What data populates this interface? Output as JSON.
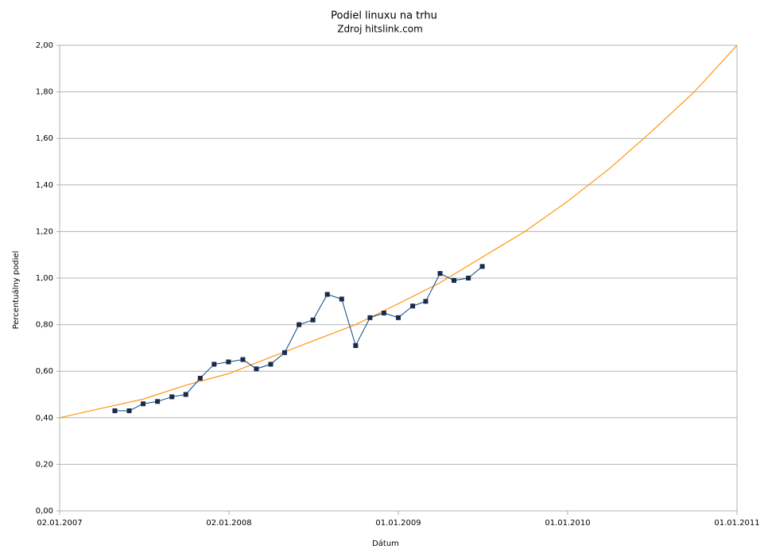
{
  "chart_data": {
    "type": "line",
    "title": "Podiel linuxu na trhu",
    "subtitle": "Zdroj hitslink.com",
    "x_label": "Dátum",
    "y_label": "Percentuálny podiel",
    "x": [
      "2007-05-01",
      "2007-06-01",
      "2007-07-01",
      "2007-08-01",
      "2007-09-01",
      "2007-10-01",
      "2007-11-01",
      "2007-12-01",
      "2008-01-01",
      "2008-02-01",
      "2008-03-01",
      "2008-04-01",
      "2008-05-01",
      "2008-06-01",
      "2008-07-01",
      "2008-08-01",
      "2008-09-01",
      "2008-10-01",
      "2008-11-01",
      "2008-12-01",
      "2009-01-01",
      "2009-02-01",
      "2009-03-01",
      "2009-04-01",
      "2009-05-01",
      "2009-06-01",
      "2009-07-01"
    ],
    "series": [
      {
        "color": "#004586",
        "marker_color": "#1c2a4a",
        "values": [
          0.43,
          0.43,
          0.46,
          0.47,
          0.49,
          0.5,
          0.57,
          0.63,
          0.64,
          0.65,
          0.61,
          0.63,
          0.68,
          0.8,
          0.82,
          0.93,
          0.91,
          0.71,
          0.83,
          0.85,
          0.83,
          0.88,
          0.9,
          1.02,
          0.99,
          1.0,
          1.05
        ]
      }
    ],
    "trendline": {
      "color": "#ff950e",
      "x": [
        "2007-01-02",
        "2007-04-01",
        "2007-07-01",
        "2007-10-01",
        "2008-01-02",
        "2008-04-01",
        "2008-07-01",
        "2008-10-01",
        "2009-01-01",
        "2009-04-01",
        "2009-07-01",
        "2009-10-01",
        "2010-01-01",
        "2010-04-01",
        "2010-07-01",
        "2010-10-01",
        "2011-01-01"
      ],
      "values": [
        0.4,
        0.44,
        0.48,
        0.54,
        0.59,
        0.66,
        0.73,
        0.8,
        0.89,
        0.98,
        1.09,
        1.2,
        1.33,
        1.47,
        1.63,
        1.8,
        2.0
      ]
    },
    "xlim": [
      "2007-01-02",
      "2011-01-01"
    ],
    "xticks": [
      {
        "value": "2007-01-02",
        "label": "02.01.2007"
      },
      {
        "value": "2008-01-02",
        "label": "02.01.2008"
      },
      {
        "value": "2009-01-01",
        "label": "01.01.2009"
      },
      {
        "value": "2010-01-01",
        "label": "01.01.2010"
      },
      {
        "value": "2011-01-01",
        "label": "01.01.2011"
      }
    ],
    "ylim": [
      0,
      2
    ],
    "yticks": [
      {
        "value": 0,
        "label": "0,00"
      },
      {
        "value": 0.2,
        "label": "0,20"
      },
      {
        "value": 0.4,
        "label": "0,40"
      },
      {
        "value": 0.6,
        "label": "0,60"
      },
      {
        "value": 0.8,
        "label": "0,80"
      },
      {
        "value": 1,
        "label": "1,00"
      },
      {
        "value": 1.2,
        "label": "1,20"
      },
      {
        "value": 1.4,
        "label": "1,40"
      },
      {
        "value": 1.6,
        "label": "1,60"
      },
      {
        "value": 1.8,
        "label": "1,80"
      },
      {
        "value": 2,
        "label": "2,00"
      }
    ],
    "grid": true
  }
}
